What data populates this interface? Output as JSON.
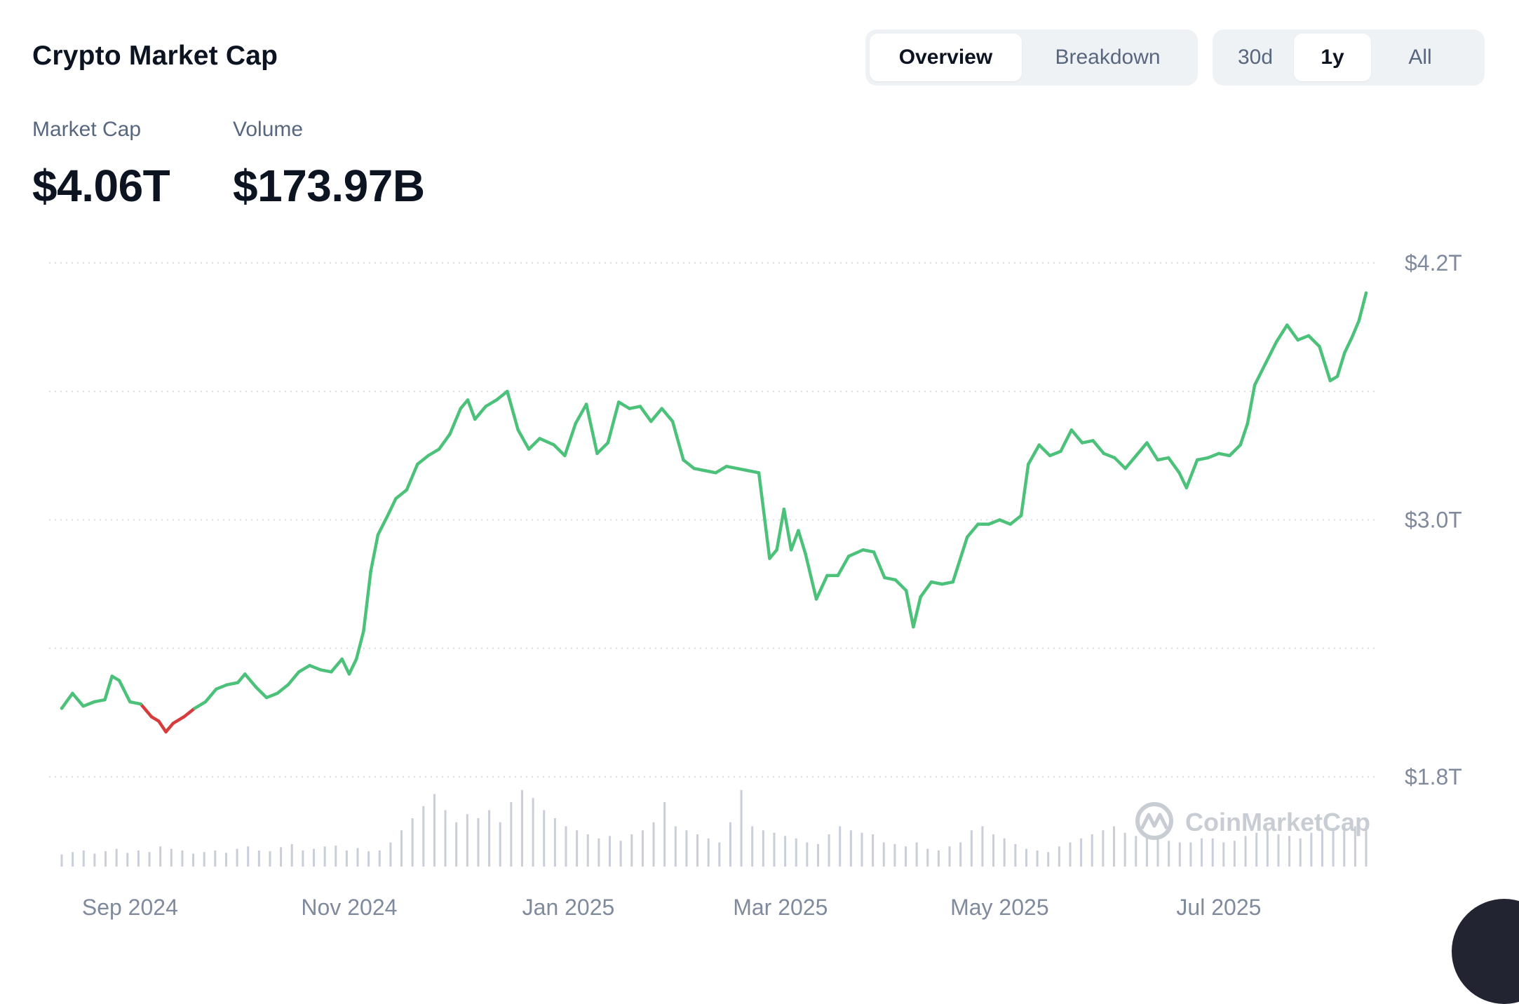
{
  "title": "Crypto Market Cap",
  "view_tabs": [
    {
      "label": "Overview",
      "active": true
    },
    {
      "label": "Breakdown",
      "active": false
    }
  ],
  "range_tabs": [
    {
      "label": "30d",
      "active": false
    },
    {
      "label": "1y",
      "active": true
    },
    {
      "label": "All",
      "active": false
    }
  ],
  "stats": {
    "market_cap_label": "Market Cap",
    "market_cap_value": "$4.06T",
    "volume_label": "Volume",
    "volume_value": "$173.97B"
  },
  "watermark": "CoinMarketCap",
  "colors": {
    "up": "#4cc17a",
    "down": "#d63c3c",
    "volume": "#c9ced8",
    "grid": "#d9dde3",
    "axis_text": "#808a9d"
  },
  "chart_data": {
    "type": "line",
    "title": "",
    "xlabel": "",
    "ylabel": "",
    "y_tick_labels": [
      "$4.2T",
      "$3.0T",
      "$1.8T"
    ],
    "y_ticks": [
      4.2,
      3.0,
      1.8
    ],
    "ylim": [
      1.8,
      4.2
    ],
    "x_tick_labels": [
      "Sep 2024",
      "Nov 2024",
      "Jan 2025",
      "Mar 2025",
      "May 2025",
      "Jul 2025"
    ],
    "x_ticks": [
      "2024-09-01",
      "2024-11-01",
      "2025-01-01",
      "2025-03-01",
      "2025-05-01",
      "2025-07-01"
    ],
    "grid": true,
    "series": [
      {
        "values": [
          [
            "2024-08-13",
            2.12
          ],
          [
            "2024-08-16",
            2.19
          ],
          [
            "2024-08-19",
            2.13
          ],
          [
            "2024-08-22",
            2.15
          ],
          [
            "2024-08-25",
            2.16
          ],
          [
            "2024-08-27",
            2.27
          ],
          [
            "2024-08-29",
            2.25
          ],
          [
            "2024-09-01",
            2.15
          ],
          [
            "2024-09-04",
            2.14
          ],
          [
            "2024-09-07",
            2.08
          ],
          [
            "2024-09-09",
            2.06
          ],
          [
            "2024-09-11",
            2.01
          ],
          [
            "2024-09-13",
            2.05
          ],
          [
            "2024-09-16",
            2.08
          ],
          [
            "2024-09-19",
            2.12
          ],
          [
            "2024-09-22",
            2.15
          ],
          [
            "2024-09-25",
            2.21
          ],
          [
            "2024-09-28",
            2.23
          ],
          [
            "2024-10-01",
            2.24
          ],
          [
            "2024-10-03",
            2.28
          ],
          [
            "2024-10-06",
            2.22
          ],
          [
            "2024-10-09",
            2.17
          ],
          [
            "2024-10-12",
            2.19
          ],
          [
            "2024-10-15",
            2.23
          ],
          [
            "2024-10-18",
            2.29
          ],
          [
            "2024-10-21",
            2.32
          ],
          [
            "2024-10-24",
            2.3
          ],
          [
            "2024-10-27",
            2.29
          ],
          [
            "2024-10-30",
            2.35
          ],
          [
            "2024-11-01",
            2.28
          ],
          [
            "2024-11-03",
            2.35
          ],
          [
            "2024-11-05",
            2.48
          ],
          [
            "2024-11-07",
            2.76
          ],
          [
            "2024-11-09",
            2.93
          ],
          [
            "2024-11-12",
            3.03
          ],
          [
            "2024-11-14",
            3.1
          ],
          [
            "2024-11-17",
            3.14
          ],
          [
            "2024-11-20",
            3.26
          ],
          [
            "2024-11-23",
            3.3
          ],
          [
            "2024-11-26",
            3.33
          ],
          [
            "2024-11-29",
            3.4
          ],
          [
            "2024-12-02",
            3.52
          ],
          [
            "2024-12-04",
            3.56
          ],
          [
            "2024-12-06",
            3.47
          ],
          [
            "2024-12-09",
            3.53
          ],
          [
            "2024-12-12",
            3.56
          ],
          [
            "2024-12-15",
            3.6
          ],
          [
            "2024-12-18",
            3.42
          ],
          [
            "2024-12-21",
            3.33
          ],
          [
            "2024-12-24",
            3.38
          ],
          [
            "2024-12-28",
            3.35
          ],
          [
            "2024-12-31",
            3.3
          ],
          [
            "2025-01-03",
            3.45
          ],
          [
            "2025-01-06",
            3.54
          ],
          [
            "2025-01-09",
            3.31
          ],
          [
            "2025-01-12",
            3.36
          ],
          [
            "2025-01-15",
            3.55
          ],
          [
            "2025-01-18",
            3.52
          ],
          [
            "2025-01-21",
            3.53
          ],
          [
            "2025-01-24",
            3.46
          ],
          [
            "2025-01-27",
            3.52
          ],
          [
            "2025-01-30",
            3.46
          ],
          [
            "2025-02-02",
            3.28
          ],
          [
            "2025-02-05",
            3.24
          ],
          [
            "2025-02-08",
            3.23
          ],
          [
            "2025-02-11",
            3.22
          ],
          [
            "2025-02-14",
            3.25
          ],
          [
            "2025-02-17",
            3.24
          ],
          [
            "2025-02-20",
            3.23
          ],
          [
            "2025-02-23",
            3.22
          ],
          [
            "2025-02-26",
            2.82
          ],
          [
            "2025-02-28",
            2.86
          ],
          [
            "2025-03-02",
            3.05
          ],
          [
            "2025-03-04",
            2.86
          ],
          [
            "2025-03-06",
            2.95
          ],
          [
            "2025-03-08",
            2.84
          ],
          [
            "2025-03-11",
            2.63
          ],
          [
            "2025-03-14",
            2.74
          ],
          [
            "2025-03-17",
            2.74
          ],
          [
            "2025-03-20",
            2.83
          ],
          [
            "2025-03-24",
            2.86
          ],
          [
            "2025-03-27",
            2.85
          ],
          [
            "2025-03-30",
            2.73
          ],
          [
            "2025-04-02",
            2.72
          ],
          [
            "2025-04-05",
            2.67
          ],
          [
            "2025-04-07",
            2.5
          ],
          [
            "2025-04-09",
            2.64
          ],
          [
            "2025-04-12",
            2.71
          ],
          [
            "2025-04-15",
            2.7
          ],
          [
            "2025-04-18",
            2.71
          ],
          [
            "2025-04-22",
            2.92
          ],
          [
            "2025-04-25",
            2.98
          ],
          [
            "2025-04-28",
            2.98
          ],
          [
            "2025-05-01",
            3.0
          ],
          [
            "2025-05-04",
            2.98
          ],
          [
            "2025-05-07",
            3.02
          ],
          [
            "2025-05-09",
            3.26
          ],
          [
            "2025-05-12",
            3.35
          ],
          [
            "2025-05-15",
            3.3
          ],
          [
            "2025-05-18",
            3.32
          ],
          [
            "2025-05-21",
            3.42
          ],
          [
            "2025-05-24",
            3.36
          ],
          [
            "2025-05-27",
            3.37
          ],
          [
            "2025-05-30",
            3.31
          ],
          [
            "2025-06-02",
            3.29
          ],
          [
            "2025-06-05",
            3.24
          ],
          [
            "2025-06-08",
            3.3
          ],
          [
            "2025-06-11",
            3.36
          ],
          [
            "2025-06-14",
            3.28
          ],
          [
            "2025-06-17",
            3.29
          ],
          [
            "2025-06-20",
            3.22
          ],
          [
            "2025-06-22",
            3.15
          ],
          [
            "2025-06-25",
            3.28
          ],
          [
            "2025-06-28",
            3.29
          ],
          [
            "2025-07-01",
            3.31
          ],
          [
            "2025-07-04",
            3.3
          ],
          [
            "2025-07-07",
            3.35
          ],
          [
            "2025-07-09",
            3.45
          ],
          [
            "2025-07-11",
            3.63
          ],
          [
            "2025-07-14",
            3.73
          ],
          [
            "2025-07-17",
            3.83
          ],
          [
            "2025-07-20",
            3.91
          ],
          [
            "2025-07-23",
            3.84
          ],
          [
            "2025-07-26",
            3.86
          ],
          [
            "2025-07-29",
            3.81
          ],
          [
            "2025-08-01",
            3.65
          ],
          [
            "2025-08-03",
            3.67
          ],
          [
            "2025-08-05",
            3.78
          ],
          [
            "2025-08-07",
            3.85
          ],
          [
            "2025-08-09",
            3.93
          ],
          [
            "2025-08-11",
            4.06
          ]
        ]
      }
    ],
    "volume_series": {
      "unit": "relative",
      "values": [
        0.15,
        0.18,
        0.2,
        0.16,
        0.19,
        0.22,
        0.17,
        0.2,
        0.18,
        0.25,
        0.22,
        0.2,
        0.16,
        0.18,
        0.2,
        0.17,
        0.22,
        0.25,
        0.2,
        0.19,
        0.24,
        0.28,
        0.2,
        0.22,
        0.25,
        0.26,
        0.2,
        0.23,
        0.19,
        0.2,
        0.3,
        0.45,
        0.6,
        0.75,
        0.9,
        0.7,
        0.55,
        0.65,
        0.6,
        0.7,
        0.55,
        0.8,
        0.95,
        0.85,
        0.7,
        0.6,
        0.5,
        0.45,
        0.4,
        0.35,
        0.38,
        0.32,
        0.4,
        0.45,
        0.55,
        0.8,
        0.5,
        0.45,
        0.4,
        0.35,
        0.3,
        0.55,
        0.95,
        0.5,
        0.45,
        0.42,
        0.38,
        0.35,
        0.3,
        0.28,
        0.4,
        0.5,
        0.45,
        0.42,
        0.4,
        0.3,
        0.28,
        0.25,
        0.3,
        0.22,
        0.2,
        0.25,
        0.3,
        0.45,
        0.5,
        0.4,
        0.35,
        0.28,
        0.22,
        0.2,
        0.18,
        0.25,
        0.3,
        0.35,
        0.4,
        0.45,
        0.5,
        0.42,
        0.38,
        0.4,
        0.35,
        0.32,
        0.3,
        0.3,
        0.35,
        0.35,
        0.3,
        0.32,
        0.38,
        0.42,
        0.45,
        0.4,
        0.38,
        0.35,
        0.42,
        0.45,
        0.48,
        0.52,
        0.5,
        0.45
      ]
    }
  }
}
